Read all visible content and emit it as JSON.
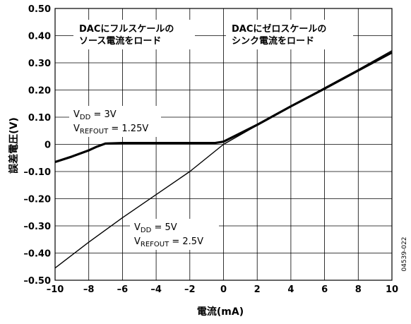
{
  "chart_data": {
    "type": "line",
    "xlabel": "電流(mA)",
    "ylabel": "誤差電圧(V)",
    "xlim": [
      -10,
      10
    ],
    "ylim": [
      -0.5,
      0.5
    ],
    "x_ticks": [
      "–10",
      "–8",
      "–6",
      "–4",
      "–2",
      "0",
      "2",
      "4",
      "6",
      "8",
      "10"
    ],
    "y_ticks": [
      "0.50",
      "0.40",
      "0.30",
      "0.20",
      "0.10",
      "0",
      "–0.10",
      "–0.20",
      "–0.30",
      "–0.40",
      "–0.50"
    ],
    "grid": true,
    "annotations": {
      "source_line1": "DACにフルスケールの",
      "source_line2": "ソース電流をロード",
      "sink_line1": "DACにゼロスケールの",
      "sink_line2": "シンク電流をロード"
    },
    "series": [
      {
        "label": {
          "vdd_prefix": "V",
          "vdd_sub": "DD",
          "vdd_value": " = 3V",
          "ref_prefix": "V",
          "ref_sub": "REFOUT",
          "ref_value": " = 1.25V"
        },
        "x": [
          -10,
          -9,
          -8,
          -7.5,
          -7,
          -6,
          -4,
          -2,
          -0.5,
          0,
          2,
          4,
          6,
          8,
          10
        ],
        "y": [
          -0.065,
          -0.045,
          -0.022,
          -0.008,
          0.003,
          0.005,
          0.005,
          0.005,
          0.005,
          0.01,
          0.072,
          0.14,
          0.205,
          0.272,
          0.338
        ]
      },
      {
        "label": {
          "vdd_prefix": "V",
          "vdd_sub": "DD",
          "vdd_value": " = 5V",
          "ref_prefix": "V",
          "ref_sub": "REFOUT",
          "ref_value": " = 2.5V"
        },
        "x": [
          -10,
          -8,
          -6,
          -4,
          -2,
          0,
          2,
          4,
          6,
          8,
          10
        ],
        "y": [
          -0.455,
          -0.36,
          -0.27,
          -0.185,
          -0.1,
          0.0,
          0.07,
          0.14,
          0.208,
          0.275,
          0.345
        ]
      }
    ],
    "figure_id": "04539-022"
  }
}
